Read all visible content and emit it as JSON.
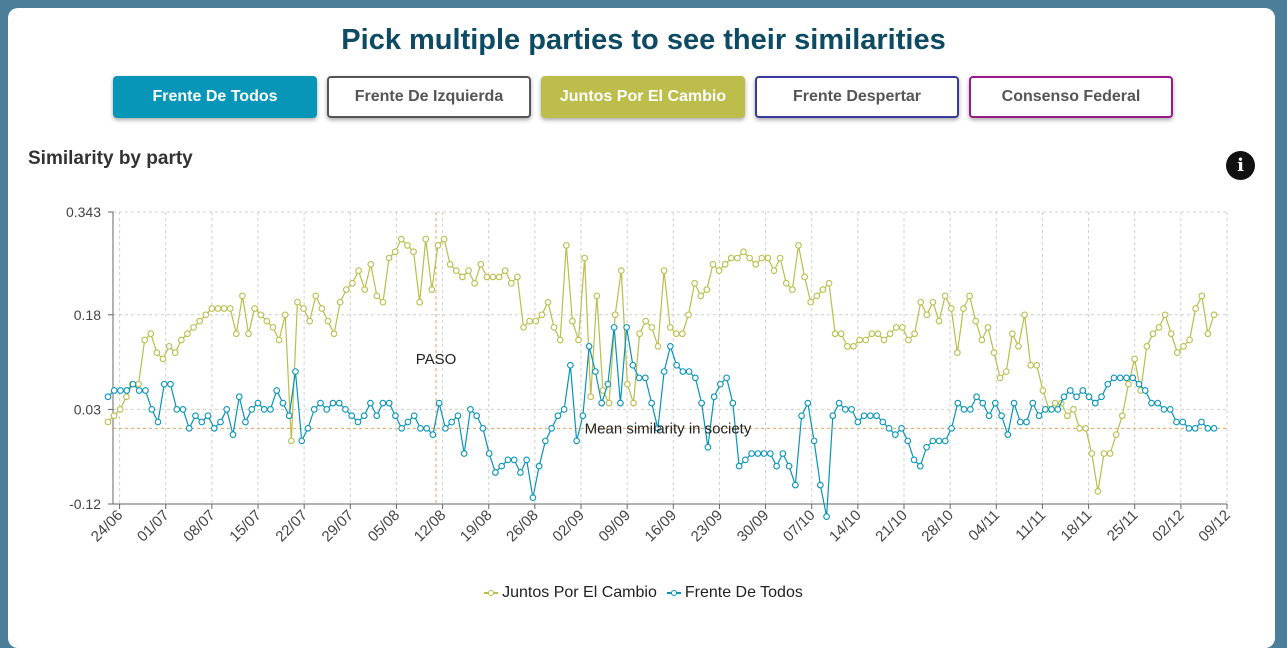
{
  "header": {
    "title": "Pick multiple parties to see their similarities"
  },
  "parties": [
    {
      "label": "Frente De Todos",
      "color": "#0795b8",
      "selected": true
    },
    {
      "label": "Frente De Izquierda",
      "color": "#555555",
      "selected": false
    },
    {
      "label": "Juntos Por El Cambio",
      "color": "#bcbd4b",
      "selected": true
    },
    {
      "label": "Frente Despertar",
      "color": "#3a3a9a",
      "selected": false
    },
    {
      "label": "Consenso Federal",
      "color": "#9a1a8e",
      "selected": false
    }
  ],
  "section": {
    "title": "Similarity by party",
    "info_icon": "info-icon"
  },
  "chart_data": {
    "type": "line",
    "title": "",
    "xlabel": "",
    "ylabel": "",
    "x_start": "2019-06-23",
    "x_end": "2019-12-09",
    "yticks": [
      0.343,
      0.18,
      0.03,
      -0.12
    ],
    "ytick_labels": [
      "0.343",
      "0.18",
      "0.03",
      "-0.12"
    ],
    "ylim": [
      -0.12,
      0.343
    ],
    "xtick_labels": [
      "24/06",
      "01/07",
      "08/07",
      "15/07",
      "22/07",
      "29/07",
      "05/08",
      "12/08",
      "19/08",
      "26/08",
      "02/09",
      "09/09",
      "16/09",
      "23/09",
      "30/09",
      "07/10",
      "14/10",
      "21/10",
      "28/10",
      "04/11",
      "11/11",
      "18/11",
      "25/11",
      "02/12",
      "09/12"
    ],
    "grid": true,
    "legend_position": "bottom",
    "series": [
      {
        "name": "Juntos Por El Cambio",
        "color": "#bcbd4b",
        "values": [
          0.01,
          0.02,
          0.03,
          0.05,
          0.07,
          0.07,
          0.14,
          0.15,
          0.12,
          0.11,
          0.13,
          0.12,
          0.14,
          0.15,
          0.16,
          0.17,
          0.18,
          0.19,
          0.19,
          0.19,
          0.19,
          0.15,
          0.21,
          0.15,
          0.19,
          0.18,
          0.17,
          0.16,
          0.14,
          0.18,
          -0.02,
          0.2,
          0.19,
          0.17,
          0.21,
          0.19,
          0.17,
          0.15,
          0.2,
          0.22,
          0.23,
          0.25,
          0.22,
          0.26,
          0.21,
          0.2,
          0.27,
          0.28,
          0.3,
          0.29,
          0.28,
          0.2,
          0.3,
          0.22,
          0.29,
          0.3,
          0.26,
          0.25,
          0.24,
          0.25,
          0.23,
          0.26,
          0.24,
          0.24,
          0.24,
          0.25,
          0.23,
          0.24,
          0.16,
          0.17,
          0.17,
          0.18,
          0.2,
          0.16,
          0.14,
          0.29,
          0.17,
          0.14,
          0.27,
          0.05,
          0.21,
          0.06,
          0.04,
          0.18,
          0.25,
          0.07,
          0.04,
          0.15,
          0.17,
          0.16,
          0.13,
          0.25,
          0.16,
          0.15,
          0.15,
          0.18,
          0.23,
          0.21,
          0.22,
          0.26,
          0.25,
          0.26,
          0.27,
          0.27,
          0.28,
          0.27,
          0.26,
          0.27,
          0.27,
          0.25,
          0.27,
          0.23,
          0.22,
          0.29,
          0.24,
          0.2,
          0.21,
          0.22,
          0.23,
          0.15,
          0.15,
          0.13,
          0.13,
          0.14,
          0.14,
          0.15,
          0.15,
          0.14,
          0.15,
          0.16,
          0.16,
          0.14,
          0.15,
          0.2,
          0.18,
          0.2,
          0.17,
          0.21,
          0.19,
          0.12,
          0.19,
          0.21,
          0.17,
          0.14,
          0.16,
          0.12,
          0.08,
          0.09,
          0.15,
          0.13,
          0.18,
          0.1,
          0.1,
          0.06,
          0.03,
          0.04,
          0.04,
          0.02,
          0.03,
          0.0,
          0.0,
          -0.04,
          -0.1,
          -0.04,
          -0.04,
          -0.01,
          0.02,
          0.07,
          0.11,
          0.06,
          0.13,
          0.15,
          0.16,
          0.18,
          0.15,
          0.12,
          0.13,
          0.14,
          0.19,
          0.21,
          0.15,
          0.18
        ],
        "labels": [
          {
            "text": "PASO",
            "x": "2019-08-11",
            "y": 0.11
          }
        ]
      },
      {
        "name": "Frente De Todos",
        "color": "#0795b8",
        "values": [
          0.05,
          0.06,
          0.06,
          0.06,
          0.07,
          0.06,
          0.06,
          0.03,
          0.01,
          0.07,
          0.07,
          0.03,
          0.03,
          0.0,
          0.02,
          0.01,
          0.02,
          0.0,
          0.01,
          0.03,
          -0.01,
          0.05,
          0.01,
          0.03,
          0.04,
          0.03,
          0.03,
          0.06,
          0.04,
          0.02,
          0.09,
          -0.02,
          0.0,
          0.03,
          0.04,
          0.03,
          0.04,
          0.04,
          0.03,
          0.02,
          0.01,
          0.02,
          0.04,
          0.02,
          0.04,
          0.04,
          0.02,
          0.0,
          0.01,
          0.02,
          0.0,
          0.0,
          -0.01,
          0.04,
          0.0,
          0.01,
          0.02,
          -0.04,
          0.03,
          0.02,
          0.0,
          -0.04,
          -0.07,
          -0.06,
          -0.05,
          -0.05,
          -0.07,
          -0.05,
          -0.11,
          -0.06,
          -0.02,
          0.0,
          0.02,
          0.03,
          0.1,
          -0.02,
          0.02,
          0.13,
          0.09,
          0.04,
          0.07,
          0.16,
          0.04,
          0.16,
          0.1,
          0.08,
          0.08,
          0.04,
          0.0,
          0.09,
          0.13,
          0.1,
          0.09,
          0.09,
          0.08,
          0.04,
          -0.03,
          0.05,
          0.07,
          0.08,
          0.04,
          -0.06,
          -0.05,
          -0.04,
          -0.04,
          -0.04,
          -0.04,
          -0.06,
          -0.04,
          -0.06,
          -0.09,
          0.02,
          0.04,
          -0.02,
          -0.09,
          -0.14,
          0.02,
          0.04,
          0.03,
          0.03,
          0.01,
          0.02,
          0.02,
          0.02,
          0.01,
          0.0,
          -0.01,
          0.0,
          -0.02,
          -0.05,
          -0.06,
          -0.03,
          -0.02,
          -0.02,
          -0.02,
          0.0,
          0.04,
          0.03,
          0.03,
          0.05,
          0.04,
          0.02,
          0.04,
          0.02,
          -0.01,
          0.04,
          0.01,
          0.01,
          0.04,
          0.02,
          0.03,
          0.03,
          0.03,
          0.05,
          0.06,
          0.05,
          0.06,
          0.05,
          0.04,
          0.05,
          0.07,
          0.08,
          0.08,
          0.08,
          0.08,
          0.07,
          0.06,
          0.04,
          0.04,
          0.03,
          0.03,
          0.01,
          0.01,
          0.0,
          0.0,
          0.01,
          0.0,
          0.0
        ]
      }
    ],
    "reference_line": {
      "label": "Mean similarity in society",
      "y": 0.0,
      "color": "#e8a060"
    },
    "event_line": {
      "x": "2019-08-11",
      "color": "#e8a060"
    }
  },
  "legend": {
    "items": [
      {
        "label": "Juntos Por El Cambio",
        "color": "#bcbd4b"
      },
      {
        "label": "Frente De Todos",
        "color": "#0795b8"
      }
    ]
  }
}
